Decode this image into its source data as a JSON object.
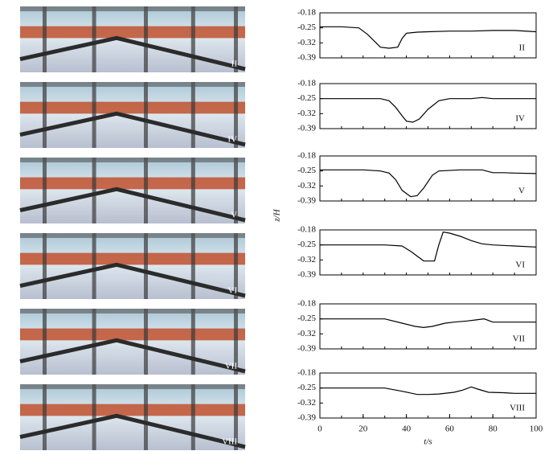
{
  "photos": [
    {
      "label": "II"
    },
    {
      "label": "IV"
    },
    {
      "label": "V"
    },
    {
      "label": "VI"
    },
    {
      "label": "VII"
    },
    {
      "label": "VIII"
    }
  ],
  "chart_data": [
    {
      "type": "line",
      "label": "II",
      "ylabel": "z/H",
      "xlim": [
        0,
        100
      ],
      "ylim": [
        -0.39,
        -0.18
      ],
      "yticks": [
        -0.18,
        -0.25,
        -0.32,
        -0.39
      ],
      "x": [
        0,
        10,
        18,
        22,
        26,
        28,
        32,
        36,
        38,
        40,
        45,
        50,
        60,
        70,
        80,
        90,
        100
      ],
      "values": [
        -0.245,
        -0.245,
        -0.25,
        -0.28,
        -0.32,
        -0.34,
        -0.345,
        -0.34,
        -0.3,
        -0.275,
        -0.27,
        -0.268,
        -0.265,
        -0.265,
        -0.262,
        -0.262,
        -0.268
      ]
    },
    {
      "type": "line",
      "label": "IV",
      "xlim": [
        0,
        100
      ],
      "ylim": [
        -0.39,
        -0.18
      ],
      "yticks": [
        -0.18,
        -0.25,
        -0.32,
        -0.39
      ],
      "x": [
        0,
        10,
        20,
        28,
        32,
        35,
        38,
        40,
        43,
        46,
        50,
        55,
        60,
        70,
        75,
        80,
        90,
        100
      ],
      "values": [
        -0.25,
        -0.25,
        -0.25,
        -0.25,
        -0.26,
        -0.29,
        -0.33,
        -0.355,
        -0.36,
        -0.345,
        -0.3,
        -0.26,
        -0.25,
        -0.25,
        -0.245,
        -0.25,
        -0.25,
        -0.25
      ]
    },
    {
      "type": "line",
      "label": "V",
      "xlim": [
        0,
        100
      ],
      "ylim": [
        -0.39,
        -0.18
      ],
      "yticks": [
        -0.18,
        -0.25,
        -0.32,
        -0.39
      ],
      "x": [
        0,
        10,
        20,
        28,
        32,
        35,
        38,
        42,
        45,
        48,
        52,
        55,
        65,
        75,
        80,
        85,
        90,
        100
      ],
      "values": [
        -0.245,
        -0.245,
        -0.245,
        -0.25,
        -0.26,
        -0.29,
        -0.34,
        -0.37,
        -0.365,
        -0.33,
        -0.27,
        -0.25,
        -0.245,
        -0.245,
        -0.258,
        -0.258,
        -0.26,
        -0.262
      ]
    },
    {
      "type": "line",
      "label": "VI",
      "xlim": [
        0,
        100
      ],
      "ylim": [
        -0.39,
        -0.18
      ],
      "yticks": [
        -0.18,
        -0.25,
        -0.32,
        -0.39
      ],
      "x": [
        0,
        10,
        20,
        30,
        38,
        42,
        46,
        48,
        53,
        55,
        57,
        60,
        65,
        70,
        75,
        80,
        90,
        100
      ],
      "values": [
        -0.25,
        -0.25,
        -0.25,
        -0.25,
        -0.255,
        -0.28,
        -0.31,
        -0.325,
        -0.325,
        -0.25,
        -0.19,
        -0.195,
        -0.21,
        -0.23,
        -0.245,
        -0.25,
        -0.255,
        -0.26
      ]
    },
    {
      "type": "line",
      "label": "VII",
      "xlim": [
        0,
        100
      ],
      "ylim": [
        -0.39,
        -0.18
      ],
      "yticks": [
        -0.18,
        -0.25,
        -0.32,
        -0.39
      ],
      "x": [
        0,
        10,
        20,
        30,
        38,
        44,
        48,
        52,
        58,
        62,
        68,
        72,
        76,
        80,
        90,
        100
      ],
      "values": [
        -0.25,
        -0.25,
        -0.25,
        -0.25,
        -0.27,
        -0.285,
        -0.29,
        -0.285,
        -0.27,
        -0.265,
        -0.26,
        -0.255,
        -0.25,
        -0.265,
        -0.265,
        -0.265
      ]
    },
    {
      "type": "line",
      "label": "VIII",
      "xlim": [
        0,
        100
      ],
      "ylim": [
        -0.39,
        -0.18
      ],
      "yticks": [
        -0.18,
        -0.25,
        -0.32,
        -0.39
      ],
      "xlabel": "t/s",
      "xticks": [
        0,
        20,
        40,
        60,
        80,
        100
      ],
      "x": [
        0,
        10,
        20,
        30,
        38,
        45,
        50,
        55,
        62,
        66,
        70,
        73,
        78,
        85,
        90,
        100
      ],
      "values": [
        -0.25,
        -0.25,
        -0.25,
        -0.25,
        -0.265,
        -0.28,
        -0.28,
        -0.278,
        -0.27,
        -0.26,
        -0.245,
        -0.255,
        -0.27,
        -0.272,
        -0.275,
        -0.275
      ]
    }
  ]
}
